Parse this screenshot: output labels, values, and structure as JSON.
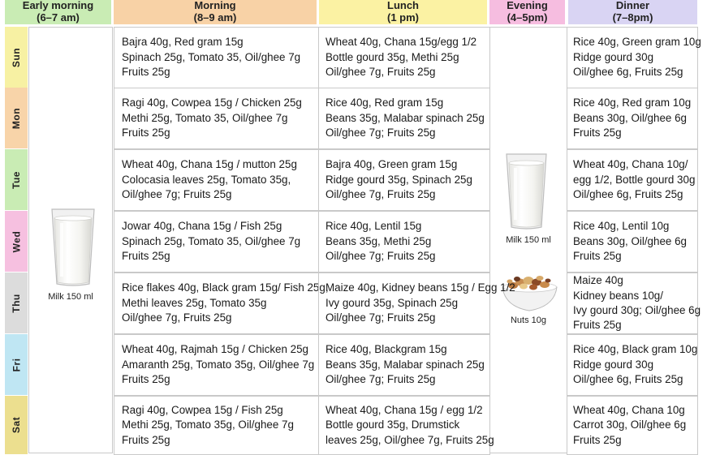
{
  "headers": {
    "early": {
      "title": "Early morning",
      "time": "(6–7 am)",
      "color": "#c9ecb4"
    },
    "morning": {
      "title": "Morning",
      "time": "(8–9 am)",
      "color": "#f8d2a6"
    },
    "lunch": {
      "title": "Lunch",
      "time": "(1 pm)",
      "color": "#fbf2a3"
    },
    "evening": {
      "title": "Evening",
      "time": "(4–5pm)",
      "color": "#f6bde0"
    },
    "dinner": {
      "title": "Dinner",
      "time": "(7–8pm)",
      "color": "#d9d4f3"
    }
  },
  "days": [
    {
      "name": "Sun",
      "color": "#f7f1a3",
      "morning": [
        "Bajra 40g, Red gram 15g",
        "Spinach 25g, Tomato 35, Oil/ghee 7g",
        "Fruits 25g"
      ],
      "lunch": [
        "Wheat 40g, Chana 15g/egg 1/2",
        "Bottle gourd 35g, Methi 25g",
        "Oil/ghee 7g, Fruits 25g"
      ],
      "dinner": [
        "Rice 40g, Green gram 10g",
        "Ridge gourd 30g",
        "Oil/ghee 6g, Fruits 25g"
      ]
    },
    {
      "name": "Mon",
      "color": "#f8d4a9",
      "morning": [
        "Ragi 40g, Cowpea 15g / Chicken 25g",
        "Methi 25g, Tomato 35, Oil/ghee 7g",
        "Fruits 25g"
      ],
      "lunch": [
        "Rice 40g, Red gram 15g",
        "Beans 35g, Malabar spinach 25g",
        "Oil/ghee 7g; Fruits 25g"
      ],
      "dinner": [
        "Rice 40g, Red gram 10g",
        "Beans 30g, Oil/ghee 6g",
        "Fruits 25g"
      ]
    },
    {
      "name": "Tue",
      "color": "#c9ecb4",
      "morning": [
        "Wheat 40g, Chana 15g / mutton 25g",
        "Colocasia leaves 25g, Tomato 35g,",
        "Oil/ghee 7g; Fruits 25g"
      ],
      "lunch": [
        "Bajra 40g, Green gram 15g",
        "Ridge gourd 35g, Spinach 25g",
        "Oil/ghee 7g, Fruits 25g"
      ],
      "dinner": [
        "Wheat 40g, Chana 10g/",
        "egg 1/2, Bottle gourd 30g",
        "Oil/ghee 6g, Fruits 25g"
      ]
    },
    {
      "name": "Wed",
      "color": "#f6c0e0",
      "morning": [
        "Jowar 40g, Chana 15g / Fish 25g",
        "Spinach 25g, Tomato 35, Oil/ghee 7g",
        "Fruits 25g"
      ],
      "lunch": [
        "Rice 40g, Lentil 15g",
        "Beans 35g, Methi 25g",
        "Oil/ghee 7g; Fruits 25g"
      ],
      "dinner": [
        "Rice 40g, Lentil 10g",
        "Beans 30g, Oil/ghee 6g",
        "Fruits 25g"
      ]
    },
    {
      "name": "Thu",
      "color": "#dcdcdc",
      "morning": [
        "Rice flakes 40g, Black gram 15g/ Fish 25g,",
        "Methi leaves 25g, Tomato 35g",
        "Oil/ghee 7g, Fruits 25g"
      ],
      "lunch": [
        "Maize 40g, Kidney beans 15g / Egg 1/2",
        "Ivy gourd 35g, Spinach 25g",
        "Oil/ghee 7g; Fruits 25g"
      ],
      "dinner": [
        "Maize 40g",
        "Kidney beans 10g/",
        "Ivy gourd 30g; Oil/ghee 6g",
        "Fruits 25g"
      ]
    },
    {
      "name": "Fri",
      "color": "#bfe6f3",
      "morning": [
        "Wheat 40g, Rajmah 15g / Chicken 25g",
        "Amaranth 25g, Tomato 35g, Oil/ghee 7g",
        "Fruits 25g"
      ],
      "lunch": [
        "Rice 40g, Blackgram 15g",
        "Beans 35g, Malabar spinach 25g",
        "Oil/ghee 7g; Fruits 25g"
      ],
      "dinner": [
        "Rice 40g, Black gram 10g",
        "Ridge gourd 30g",
        "Oil/ghee 6g, Fruits 25g"
      ]
    },
    {
      "name": "Sat",
      "color": "#ecdf8f",
      "morning": [
        "Ragi 40g, Cowpea 15g / Fish 25g",
        "Methi 25g, Tomato 35g, Oil/ghee 7g",
        "Fruits 25g"
      ],
      "lunch": [
        "Wheat 40g, Chana 15g / egg 1/2",
        "Bottle gourd 35g, Drumstick",
        "leaves 25g, Oil/ghee 7g, Fruits 25g"
      ],
      "dinner": [
        "Wheat 40g, Chana 10g",
        "Carrot 30g, Oil/ghee 6g",
        "Fruits 25g"
      ]
    }
  ],
  "early_item": {
    "label": "Milk 150 ml",
    "icon": "milk-glass-icon"
  },
  "evening_items": [
    {
      "label": "Milk 150 ml",
      "icon": "milk-glass-icon"
    },
    {
      "label": "Nuts 10g",
      "icon": "nuts-bowl-icon"
    }
  ]
}
